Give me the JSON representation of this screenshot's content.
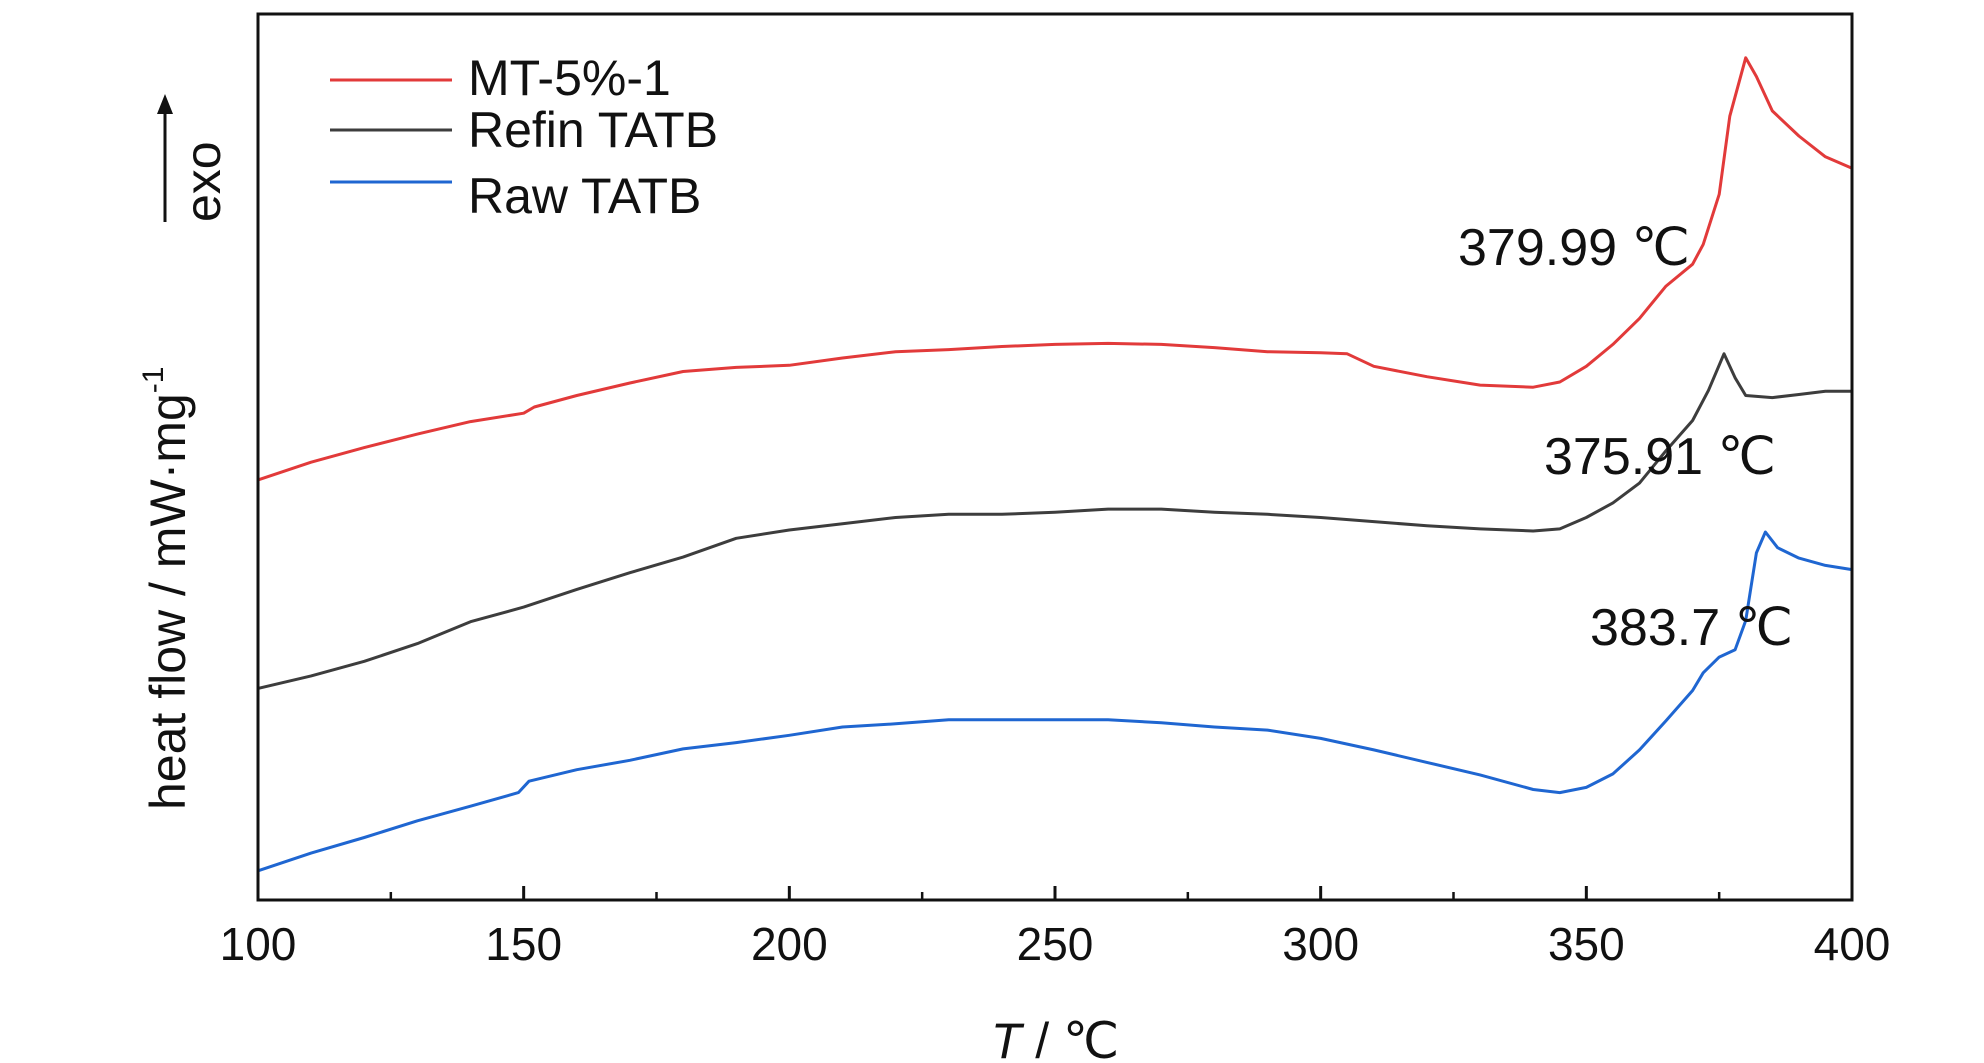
{
  "chart_data": {
    "type": "line",
    "xlabel": {
      "var": "T",
      "unit": " / ℃"
    },
    "ylabel": "heat flow / mW·mg",
    "ylabel_sup": "-1",
    "exo_label": "exo",
    "xlim": [
      100,
      400
    ],
    "xticks": [
      100,
      150,
      200,
      250,
      300,
      350,
      400
    ],
    "yticks_shown": false,
    "series": [
      {
        "name": "MT-5%-1",
        "color": "#e23a3a",
        "x": [
          100,
          110,
          120,
          130,
          140,
          150,
          152,
          160,
          170,
          180,
          190,
          200,
          210,
          220,
          230,
          240,
          250,
          260,
          270,
          280,
          290,
          300,
          305,
          310,
          320,
          330,
          340,
          345,
          350,
          355,
          360,
          365,
          370,
          372,
          375,
          377,
          379.99,
          382,
          385,
          390,
          395,
          400
        ],
        "y": [
          -0.97,
          -0.8,
          -0.66,
          -0.53,
          -0.41,
          -0.33,
          -0.27,
          -0.16,
          -0.04,
          0.07,
          0.11,
          0.13,
          0.2,
          0.26,
          0.28,
          0.31,
          0.33,
          0.34,
          0.33,
          0.3,
          0.26,
          0.25,
          0.24,
          0.12,
          0.02,
          -0.06,
          -0.08,
          -0.03,
          0.12,
          0.33,
          0.58,
          0.89,
          1.1,
          1.29,
          1.77,
          2.52,
          3.08,
          2.9,
          2.57,
          2.33,
          2.13,
          2.02
        ]
      },
      {
        "name": "Refin TATB",
        "color": "#3d3d3d",
        "x": [
          100,
          110,
          120,
          130,
          140,
          150,
          160,
          170,
          180,
          190,
          200,
          210,
          220,
          230,
          240,
          250,
          260,
          270,
          280,
          290,
          300,
          310,
          320,
          330,
          340,
          345,
          350,
          355,
          360,
          365,
          370,
          373,
          375.91,
          378,
          380,
          385,
          390,
          395,
          400
        ],
        "y": [
          -2.97,
          -2.85,
          -2.71,
          -2.54,
          -2.33,
          -2.19,
          -2.02,
          -1.86,
          -1.71,
          -1.53,
          -1.45,
          -1.39,
          -1.33,
          -1.3,
          -1.3,
          -1.28,
          -1.25,
          -1.25,
          -1.28,
          -1.3,
          -1.33,
          -1.37,
          -1.41,
          -1.44,
          -1.46,
          -1.44,
          -1.33,
          -1.19,
          -1.0,
          -0.69,
          -0.4,
          -0.11,
          0.24,
          0.01,
          -0.16,
          -0.18,
          -0.15,
          -0.12,
          -0.12
        ]
      },
      {
        "name": "Raw TATB",
        "color": "#1f66d1",
        "x": [
          100,
          110,
          120,
          130,
          140,
          149,
          151,
          160,
          170,
          180,
          190,
          200,
          210,
          220,
          230,
          240,
          250,
          260,
          270,
          280,
          290,
          300,
          310,
          320,
          330,
          340,
          345,
          350,
          355,
          360,
          365,
          370,
          372,
          375,
          378,
          380,
          382,
          383.7,
          386,
          390,
          395,
          400
        ],
        "y": [
          -4.72,
          -4.55,
          -4.4,
          -4.24,
          -4.1,
          -3.97,
          -3.86,
          -3.75,
          -3.66,
          -3.55,
          -3.49,
          -3.42,
          -3.34,
          -3.31,
          -3.27,
          -3.27,
          -3.27,
          -3.27,
          -3.3,
          -3.34,
          -3.37,
          -3.45,
          -3.56,
          -3.68,
          -3.8,
          -3.94,
          -3.97,
          -3.92,
          -3.79,
          -3.56,
          -3.28,
          -2.99,
          -2.82,
          -2.67,
          -2.6,
          -2.32,
          -1.67,
          -1.47,
          -1.62,
          -1.72,
          -1.79,
          -1.83
        ]
      }
    ],
    "annotations": [
      {
        "text": "379.99 ℃",
        "series": "MT-5%-1",
        "x": 379.99
      },
      {
        "text": "375.91 ℃",
        "series": "Refin TATB",
        "x": 375.91
      },
      {
        "text": "383.7 ℃",
        "series": "Raw TATB",
        "x": 383.7
      }
    ],
    "legend": {
      "position": "top-left",
      "entries": [
        "MT-5%-1",
        "Refin TATB",
        "Raw TATB"
      ]
    },
    "grid": false
  }
}
